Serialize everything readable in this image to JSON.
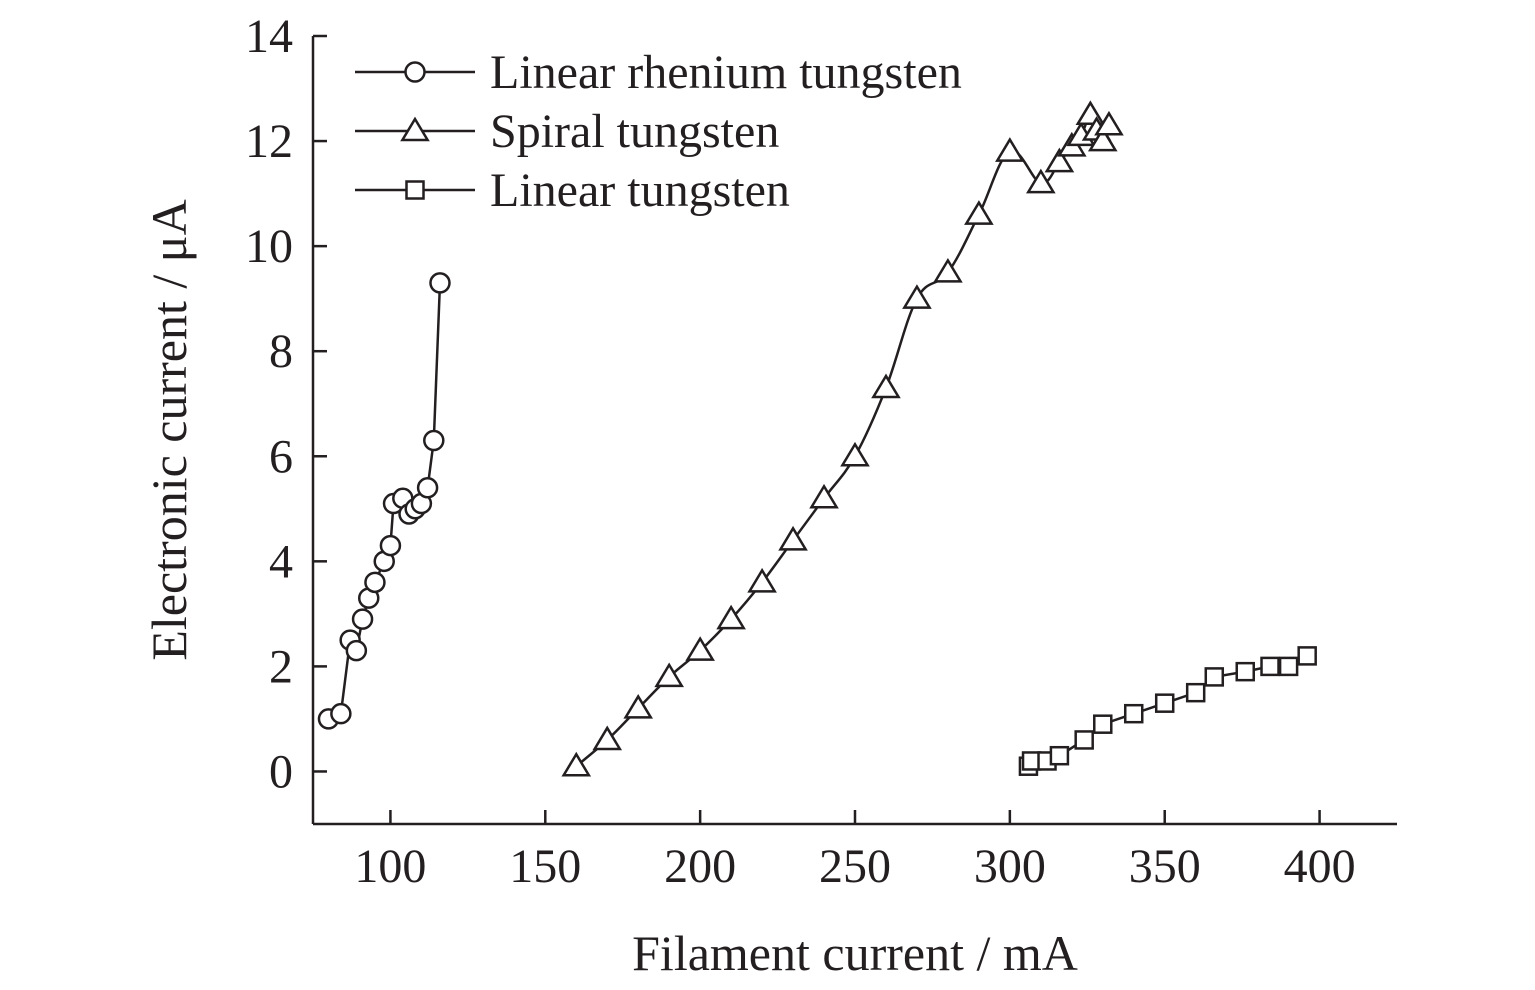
{
  "chart_data": {
    "type": "line",
    "title": "",
    "xlabel": "Filament current / mA",
    "ylabel": "Electronic current / μA",
    "xlim": [
      75,
      425
    ],
    "ylim": [
      -1,
      14
    ],
    "xticks": [
      100,
      150,
      200,
      250,
      300,
      350,
      400
    ],
    "yticks": [
      0,
      2,
      4,
      6,
      8,
      10,
      12,
      14
    ],
    "grid": false,
    "legend_position": "top-left",
    "line_color": "#231f20",
    "series": [
      {
        "name": "Linear rhenium tungsten",
        "marker": "circle",
        "smooth": false,
        "x": [
          80,
          84,
          87,
          89,
          91,
          93,
          95,
          98,
          100,
          101,
          104,
          106,
          108,
          110,
          112,
          114,
          116
        ],
        "y": [
          1.0,
          1.1,
          2.5,
          2.3,
          2.9,
          3.3,
          3.6,
          4.0,
          4.3,
          5.1,
          5.2,
          4.9,
          5.0,
          5.1,
          5.4,
          6.3,
          9.3
        ]
      },
      {
        "name": "Spiral tungsten",
        "marker": "triangle",
        "smooth": true,
        "x": [
          160,
          170,
          180,
          190,
          200,
          210,
          220,
          230,
          240,
          250,
          260,
          270,
          280,
          290,
          300,
          310,
          316,
          320,
          323,
          326,
          328,
          330,
          332
        ],
        "y": [
          0.1,
          0.6,
          1.2,
          1.8,
          2.3,
          2.9,
          3.6,
          4.4,
          5.2,
          6.0,
          7.3,
          9.0,
          9.5,
          10.6,
          11.8,
          11.2,
          11.6,
          11.9,
          12.1,
          12.5,
          12.2,
          12.0,
          12.3
        ]
      },
      {
        "name": "Linear tungsten",
        "marker": "square",
        "smooth": false,
        "x": [
          306,
          307,
          312,
          316,
          324,
          330,
          340,
          350,
          360,
          366,
          376,
          384,
          390,
          396
        ],
        "y": [
          0.1,
          0.2,
          0.2,
          0.3,
          0.6,
          0.9,
          1.1,
          1.3,
          1.5,
          1.8,
          1.9,
          2.0,
          2.0,
          2.2
        ]
      }
    ]
  }
}
